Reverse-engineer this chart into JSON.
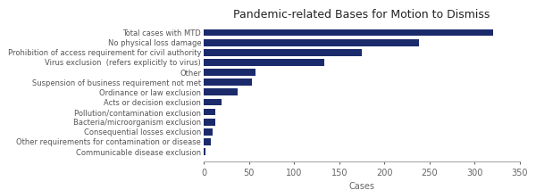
{
  "title": "Pandemic-related Bases for Motion to Dismiss",
  "xlabel": "Cases",
  "xlim": [
    0,
    350
  ],
  "xticks": [
    0,
    50,
    100,
    150,
    200,
    250,
    300,
    350
  ],
  "bar_color": "#1b2a6b",
  "categories": [
    "Communicable disease exclusion",
    "Other requirements for contamination or disease",
    "Consequential losses exclusion",
    "Bacteria/microorganism exclusion",
    "Pollution/contamination exclusion",
    "Acts or decision exclusion",
    "Ordinance or law exclusion",
    "Suspension of business requirement not met",
    "Other",
    "Virus exclusion  (refers explicitly to virus)",
    "Prohibition of access requirement for civil authority",
    "No physical loss damage",
    "Total cases with MTD"
  ],
  "values": [
    2,
    8,
    10,
    13,
    13,
    20,
    38,
    53,
    57,
    133,
    175,
    238,
    320
  ],
  "title_fontsize": 9,
  "xlabel_fontsize": 7,
  "ylabel_fontsize": 6,
  "xtick_fontsize": 7,
  "bar_height": 0.7
}
